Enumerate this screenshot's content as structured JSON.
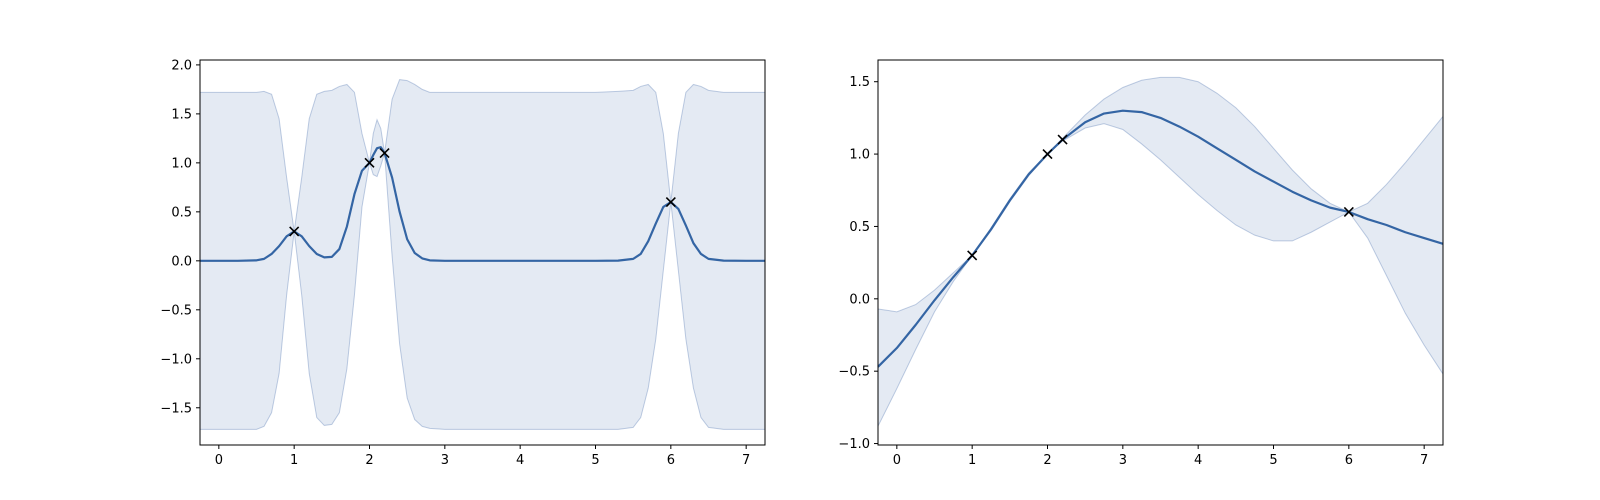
{
  "colors": {
    "mean_line": "#3465a4",
    "band_fill": "#4c72b0",
    "marker": "#000000"
  },
  "chart_data": [
    {
      "type": "line",
      "title": "",
      "xlabel": "",
      "ylabel": "",
      "xlim": [
        -0.25,
        7.25
      ],
      "ylim": [
        -1.88,
        2.05
      ],
      "xticks": [
        0,
        1,
        2,
        3,
        4,
        5,
        6,
        7
      ],
      "yticks": [
        -1.5,
        -1.0,
        -0.5,
        0.0,
        0.5,
        1.0,
        1.5,
        2.0
      ],
      "ytick_labels": [
        "−1.5",
        "−1.0",
        "−0.5",
        "0.0",
        "0.5",
        "1.0",
        "1.5",
        "2.0"
      ],
      "grid": false,
      "observations": {
        "x": [
          1,
          2,
          2.2,
          6
        ],
        "y": [
          0.3,
          1.0,
          1.1,
          0.6
        ],
        "marker": "x"
      },
      "series": [
        {
          "role": "mean",
          "x": [
            -0.25,
            0.0,
            0.25,
            0.5,
            0.6,
            0.7,
            0.8,
            0.9,
            1.0,
            1.1,
            1.2,
            1.3,
            1.4,
            1.5,
            1.6,
            1.7,
            1.8,
            1.9,
            2.0,
            2.05,
            2.1,
            2.15,
            2.2,
            2.3,
            2.4,
            2.5,
            2.6,
            2.7,
            2.8,
            3.0,
            3.5,
            4.0,
            4.5,
            5.0,
            5.3,
            5.5,
            5.6,
            5.7,
            5.8,
            5.9,
            6.0,
            6.1,
            6.2,
            6.3,
            6.4,
            6.5,
            6.7,
            7.0,
            7.25
          ],
          "y": [
            0.0,
            0.0,
            0.0,
            0.005,
            0.02,
            0.07,
            0.15,
            0.25,
            0.3,
            0.25,
            0.15,
            0.07,
            0.035,
            0.04,
            0.12,
            0.35,
            0.68,
            0.92,
            1.0,
            1.08,
            1.15,
            1.16,
            1.1,
            0.85,
            0.5,
            0.22,
            0.08,
            0.025,
            0.005,
            0.0,
            0.0,
            0.0,
            0.0,
            0.0,
            0.002,
            0.02,
            0.07,
            0.2,
            0.38,
            0.55,
            0.6,
            0.53,
            0.36,
            0.18,
            0.07,
            0.02,
            0.002,
            0.0,
            0.0
          ]
        },
        {
          "role": "confidence-band-upper",
          "x": [
            -0.25,
            0.0,
            0.25,
            0.5,
            0.6,
            0.7,
            0.8,
            0.9,
            1.0,
            1.1,
            1.2,
            1.3,
            1.4,
            1.5,
            1.6,
            1.7,
            1.8,
            1.9,
            2.0,
            2.05,
            2.1,
            2.15,
            2.2,
            2.3,
            2.4,
            2.5,
            2.6,
            2.7,
            2.8,
            3.0,
            3.5,
            4.0,
            4.5,
            5.0,
            5.3,
            5.5,
            5.6,
            5.7,
            5.8,
            5.9,
            6.0,
            6.1,
            6.2,
            6.3,
            6.4,
            6.5,
            6.7,
            7.0,
            7.25
          ],
          "y": [
            1.72,
            1.72,
            1.72,
            1.72,
            1.73,
            1.7,
            1.45,
            0.85,
            0.3,
            0.85,
            1.45,
            1.7,
            1.73,
            1.74,
            1.78,
            1.8,
            1.72,
            1.3,
            1.0,
            1.3,
            1.44,
            1.35,
            1.1,
            1.65,
            1.85,
            1.84,
            1.8,
            1.75,
            1.72,
            1.72,
            1.72,
            1.72,
            1.72,
            1.72,
            1.73,
            1.74,
            1.78,
            1.8,
            1.72,
            1.3,
            0.6,
            1.3,
            1.72,
            1.8,
            1.78,
            1.74,
            1.72,
            1.72,
            1.72
          ]
        },
        {
          "role": "confidence-band-lower",
          "x": [
            -0.25,
            0.0,
            0.25,
            0.5,
            0.6,
            0.7,
            0.8,
            0.9,
            1.0,
            1.1,
            1.2,
            1.3,
            1.4,
            1.5,
            1.6,
            1.7,
            1.8,
            1.9,
            2.0,
            2.05,
            2.1,
            2.15,
            2.2,
            2.3,
            2.4,
            2.5,
            2.6,
            2.7,
            2.8,
            3.0,
            3.5,
            4.0,
            4.5,
            5.0,
            5.3,
            5.5,
            5.6,
            5.7,
            5.8,
            5.9,
            6.0,
            6.1,
            6.2,
            6.3,
            6.4,
            6.5,
            6.7,
            7.0,
            7.25
          ],
          "y": [
            -1.72,
            -1.72,
            -1.72,
            -1.72,
            -1.69,
            -1.55,
            -1.15,
            -0.35,
            0.3,
            -0.35,
            -1.15,
            -1.6,
            -1.68,
            -1.67,
            -1.55,
            -1.1,
            -0.35,
            0.55,
            1.0,
            0.88,
            0.86,
            0.97,
            1.1,
            0.05,
            -0.85,
            -1.4,
            -1.62,
            -1.69,
            -1.71,
            -1.72,
            -1.72,
            -1.72,
            -1.72,
            -1.72,
            -1.72,
            -1.7,
            -1.6,
            -1.3,
            -0.8,
            -0.1,
            0.6,
            -0.1,
            -0.8,
            -1.3,
            -1.6,
            -1.7,
            -1.72,
            -1.72,
            -1.72
          ]
        }
      ]
    },
    {
      "type": "line",
      "title": "",
      "xlabel": "",
      "ylabel": "",
      "xlim": [
        -0.25,
        7.25
      ],
      "ylim": [
        -1.01,
        1.65
      ],
      "xticks": [
        0,
        1,
        2,
        3,
        4,
        5,
        6,
        7
      ],
      "yticks": [
        -1.0,
        -0.5,
        0.0,
        0.5,
        1.0,
        1.5
      ],
      "ytick_labels": [
        "−1.0",
        "−0.5",
        "0.0",
        "0.5",
        "1.0",
        "1.5"
      ],
      "grid": false,
      "observations": {
        "x": [
          1,
          2,
          2.2,
          6
        ],
        "y": [
          0.3,
          1.0,
          1.1,
          0.6
        ],
        "marker": "x"
      },
      "series": [
        {
          "role": "mean",
          "x": [
            -0.25,
            0.0,
            0.25,
            0.5,
            0.75,
            1.0,
            1.25,
            1.5,
            1.75,
            2.0,
            2.2,
            2.5,
            2.75,
            3.0,
            3.25,
            3.5,
            3.75,
            4.0,
            4.25,
            4.5,
            4.75,
            5.0,
            5.25,
            5.5,
            5.75,
            6.0,
            6.25,
            6.5,
            6.75,
            7.0,
            7.25
          ],
          "y": [
            -0.47,
            -0.34,
            -0.18,
            -0.01,
            0.15,
            0.3,
            0.48,
            0.68,
            0.86,
            1.0,
            1.1,
            1.22,
            1.28,
            1.3,
            1.29,
            1.25,
            1.19,
            1.12,
            1.04,
            0.96,
            0.88,
            0.81,
            0.74,
            0.68,
            0.63,
            0.6,
            0.55,
            0.51,
            0.46,
            0.42,
            0.38
          ]
        },
        {
          "role": "confidence-band-upper",
          "x": [
            -0.25,
            0.0,
            0.25,
            0.5,
            0.75,
            1.0,
            1.25,
            1.5,
            1.75,
            2.0,
            2.2,
            2.5,
            2.75,
            3.0,
            3.25,
            3.5,
            3.75,
            4.0,
            4.25,
            4.5,
            4.75,
            5.0,
            5.25,
            5.5,
            5.75,
            6.0,
            6.25,
            6.5,
            6.75,
            7.0,
            7.25
          ],
          "y": [
            -0.07,
            -0.09,
            -0.04,
            0.06,
            0.18,
            0.3,
            0.49,
            0.69,
            0.87,
            1.0,
            1.11,
            1.27,
            1.38,
            1.46,
            1.51,
            1.53,
            1.53,
            1.5,
            1.42,
            1.32,
            1.19,
            1.04,
            0.89,
            0.76,
            0.66,
            0.6,
            0.66,
            0.79,
            0.94,
            1.1,
            1.26
          ]
        },
        {
          "role": "confidence-band-lower",
          "x": [
            -0.25,
            0.0,
            0.25,
            0.5,
            0.75,
            1.0,
            1.25,
            1.5,
            1.75,
            2.0,
            2.2,
            2.5,
            2.75,
            3.0,
            3.25,
            3.5,
            3.75,
            4.0,
            4.25,
            4.5,
            4.75,
            5.0,
            5.25,
            5.5,
            5.75,
            6.0,
            6.25,
            6.5,
            6.75,
            7.0,
            7.25
          ],
          "y": [
            -0.88,
            -0.62,
            -0.35,
            -0.09,
            0.12,
            0.3,
            0.47,
            0.67,
            0.85,
            1.0,
            1.09,
            1.18,
            1.21,
            1.17,
            1.07,
            0.96,
            0.84,
            0.72,
            0.61,
            0.51,
            0.44,
            0.4,
            0.4,
            0.46,
            0.53,
            0.6,
            0.42,
            0.16,
            -0.1,
            -0.32,
            -0.52
          ]
        }
      ]
    }
  ]
}
